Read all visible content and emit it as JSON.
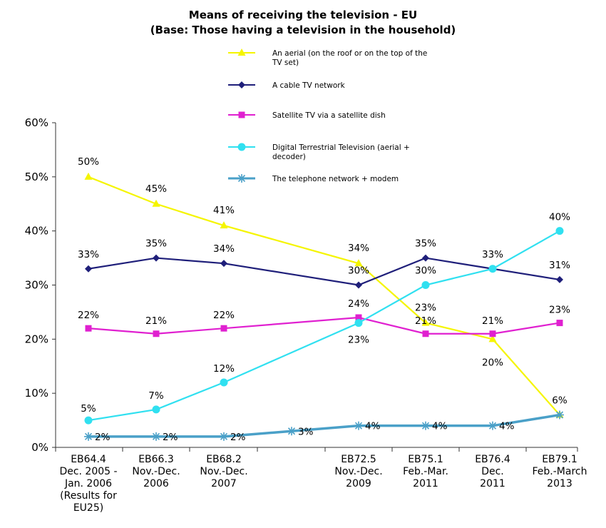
{
  "chart_data": {
    "type": "line",
    "title": "Means of receiving the television - EU",
    "subtitle": "(Base: Those having a television in the household)",
    "ylim": [
      0,
      60
    ],
    "yticks": [
      "0%",
      "10%",
      "20%",
      "30%",
      "40%",
      "50%",
      "60%"
    ],
    "x": [
      0,
      1,
      2,
      3,
      4,
      5,
      6,
      7
    ],
    "categories": [
      [
        "EB64.4",
        "Dec. 2005 -",
        "Jan. 2006",
        "(Results for",
        "EU25)"
      ],
      [
        "EB66.3",
        "Nov.-Dec.",
        "2006"
      ],
      [
        "EB68.2",
        "Nov.-Dec.",
        "2007"
      ],
      [],
      [
        "EB72.5",
        "Nov.-Dec.",
        "2009"
      ],
      [
        "EB75.1",
        "Feb.-Mar.",
        "2011"
      ],
      [
        "EB76.4",
        "Dec.",
        "2011"
      ],
      [
        "EB79.1",
        "Feb.-March",
        "2013"
      ]
    ],
    "legend_position": "top-right",
    "grid": false,
    "series": [
      {
        "name": "An aerial (on the roof or on the top of the TV set)",
        "legend_lines": [
          "An aerial (on the roof or on the top of the",
          "TV set)"
        ],
        "color": "#f5f500",
        "marker": "triangle",
        "points": [
          [
            0,
            50
          ],
          [
            1,
            45
          ],
          [
            2,
            41
          ],
          [
            4,
            34
          ],
          [
            5,
            23
          ],
          [
            6,
            20
          ],
          [
            7,
            6
          ]
        ],
        "labels": [
          "50%",
          "45%",
          "41%",
          "34%",
          "23%",
          "20%",
          "6%"
        ]
      },
      {
        "name": "A cable TV network",
        "legend_lines": [
          "A cable TV network"
        ],
        "color": "#1f1f7a",
        "marker": "diamond",
        "points": [
          [
            0,
            33
          ],
          [
            1,
            35
          ],
          [
            2,
            34
          ],
          [
            4,
            30
          ],
          [
            5,
            35
          ],
          [
            6,
            33
          ],
          [
            7,
            31
          ]
        ],
        "labels": [
          "33%",
          "35%",
          "34%",
          "30%",
          "35%",
          "33%",
          "31%"
        ]
      },
      {
        "name": "Satellite TV via a satellite dish",
        "legend_lines": [
          "Satellite TV via a satellite dish"
        ],
        "color": "#e020d0",
        "marker": "square",
        "points": [
          [
            0,
            22
          ],
          [
            1,
            21
          ],
          [
            2,
            22
          ],
          [
            4,
            24
          ],
          [
            5,
            21
          ],
          [
            6,
            21
          ],
          [
            7,
            23
          ]
        ],
        "labels": [
          "22%",
          "21%",
          "22%",
          "24%",
          "21%",
          "21%",
          "23%"
        ]
      },
      {
        "name": "Digital Terrestrial Television (aerial + decoder)",
        "legend_lines": [
          "Digital Terrestrial Television (aerial +",
          "decoder)"
        ],
        "color": "#30e0f0",
        "marker": "circle",
        "points": [
          [
            0,
            5
          ],
          [
            1,
            7
          ],
          [
            2,
            12
          ],
          [
            4,
            23
          ],
          [
            5,
            30
          ],
          [
            6,
            33
          ],
          [
            7,
            40
          ]
        ],
        "labels": [
          "5%",
          "7%",
          "12%",
          "23%",
          "30%",
          "",
          "40%"
        ]
      },
      {
        "name": "The telephone network + modem",
        "legend_lines": [
          "The telephone network + modem"
        ],
        "color": "#4aa0c8",
        "marker": "star",
        "points": [
          [
            0,
            2
          ],
          [
            1,
            2
          ],
          [
            2,
            2
          ],
          [
            3,
            3
          ],
          [
            4,
            4
          ],
          [
            5,
            4
          ],
          [
            6,
            4
          ],
          [
            7,
            6
          ]
        ],
        "labels": [
          "2%",
          "2%",
          "2%",
          "3%",
          "4%",
          "4%",
          "4%",
          ""
        ]
      }
    ]
  }
}
